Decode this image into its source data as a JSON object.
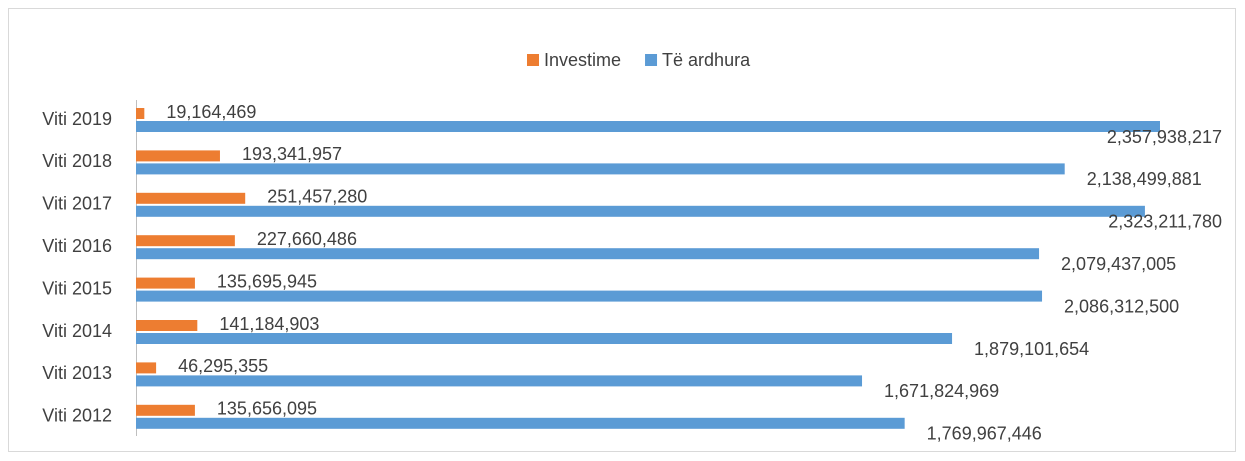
{
  "chart_data": {
    "type": "barh",
    "categories": [
      "Viti 2019",
      "Viti 2018",
      "Viti 2017",
      "Viti 2016",
      "Viti 2015",
      "Viti 2014",
      "Viti 2013",
      "Viti 2012"
    ],
    "series": [
      {
        "name": "Investime",
        "color": "#ed7d31",
        "values": [
          19164469,
          193341957,
          251457280,
          227660486,
          135695945,
          141184903,
          46295355,
          135656095
        ],
        "value_labels": [
          "19,164,469",
          "193,341,957",
          "251,457,280",
          "227,660,486",
          "135,695,945",
          "141,184,903",
          "46,295,355",
          "135,656,095"
        ]
      },
      {
        "name": "Të ardhura",
        "color": "#5b9bd5",
        "values": [
          2357938217,
          2138499881,
          2323211780,
          2079437005,
          2086312500,
          1879101654,
          1671824969,
          1769967446
        ],
        "value_labels": [
          "2,357,938,217",
          "2,138,499,881",
          "2,323,211,780",
          "2,079,437,005",
          "2,086,312,500",
          "1,879,101,654",
          "1,671,824,969",
          "1,769,967,446"
        ]
      }
    ],
    "legend": "top"
  }
}
